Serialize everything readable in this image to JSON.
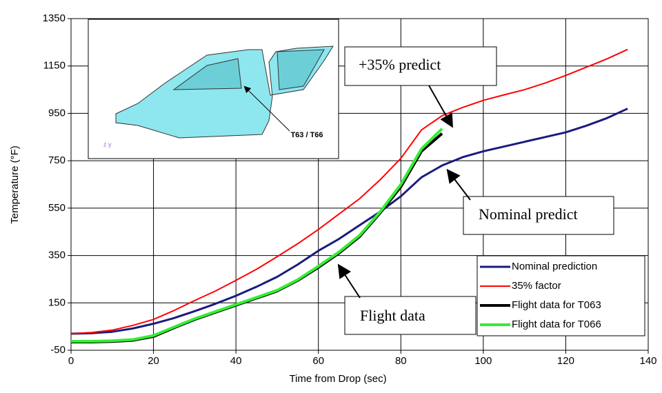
{
  "chart_data": {
    "type": "line",
    "x_label": "Time from Drop (sec)",
    "y_label": "Temperature (°F)",
    "x": [
      0,
      5,
      10,
      15,
      20,
      25,
      30,
      35,
      40,
      45,
      50,
      55,
      60,
      65,
      70,
      75,
      80,
      85,
      90,
      95,
      100,
      105,
      110,
      115,
      120,
      125,
      130,
      135
    ],
    "series": [
      {
        "name": "Nominal prediction",
        "color": "#1a1a80",
        "values": [
          20,
          22,
          28,
          42,
          62,
          86,
          115,
          146,
          180,
          218,
          260,
          312,
          370,
          420,
          478,
          535,
          600,
          680,
          730,
          765,
          790,
          810,
          830,
          850,
          870,
          898,
          930,
          970
        ]
      },
      {
        "name": "35% factor",
        "color": "#ff0000",
        "values": [
          20,
          25,
          35,
          55,
          80,
          118,
          160,
          200,
          245,
          292,
          345,
          400,
          460,
          525,
          590,
          670,
          760,
          880,
          940,
          975,
          1005,
          1028,
          1050,
          1078,
          1110,
          1145,
          1180,
          1220
        ]
      },
      {
        "name": "Flight data for T063",
        "color": "#000000",
        "values": [
          -15,
          -15,
          -13,
          -8,
          8,
          45,
          80,
          110,
          140,
          170,
          200,
          245,
          300,
          360,
          430,
          530,
          640,
          790,
          865,
          null,
          null,
          null,
          null,
          null,
          null,
          null,
          null,
          null
        ]
      },
      {
        "name": "Flight data for T066",
        "color": "#33ee33",
        "values": [
          -12,
          -12,
          -10,
          -5,
          12,
          48,
          83,
          113,
          143,
          173,
          203,
          248,
          305,
          365,
          435,
          535,
          650,
          800,
          885,
          null,
          null,
          null,
          null,
          null,
          null,
          null,
          null,
          null
        ]
      }
    ],
    "xlim": [
      0,
      140
    ],
    "xticks": [
      0,
      20,
      40,
      60,
      80,
      100,
      120,
      140
    ],
    "ylim": [
      -50,
      1350
    ],
    "yticks": [
      -50,
      150,
      350,
      550,
      750,
      950,
      1150,
      1350
    ],
    "grid": true,
    "legend": "lower right",
    "annotations": [
      "+35% predict",
      "Nominal predict",
      "Flight data"
    ],
    "inset_label": "T63 / T66"
  }
}
